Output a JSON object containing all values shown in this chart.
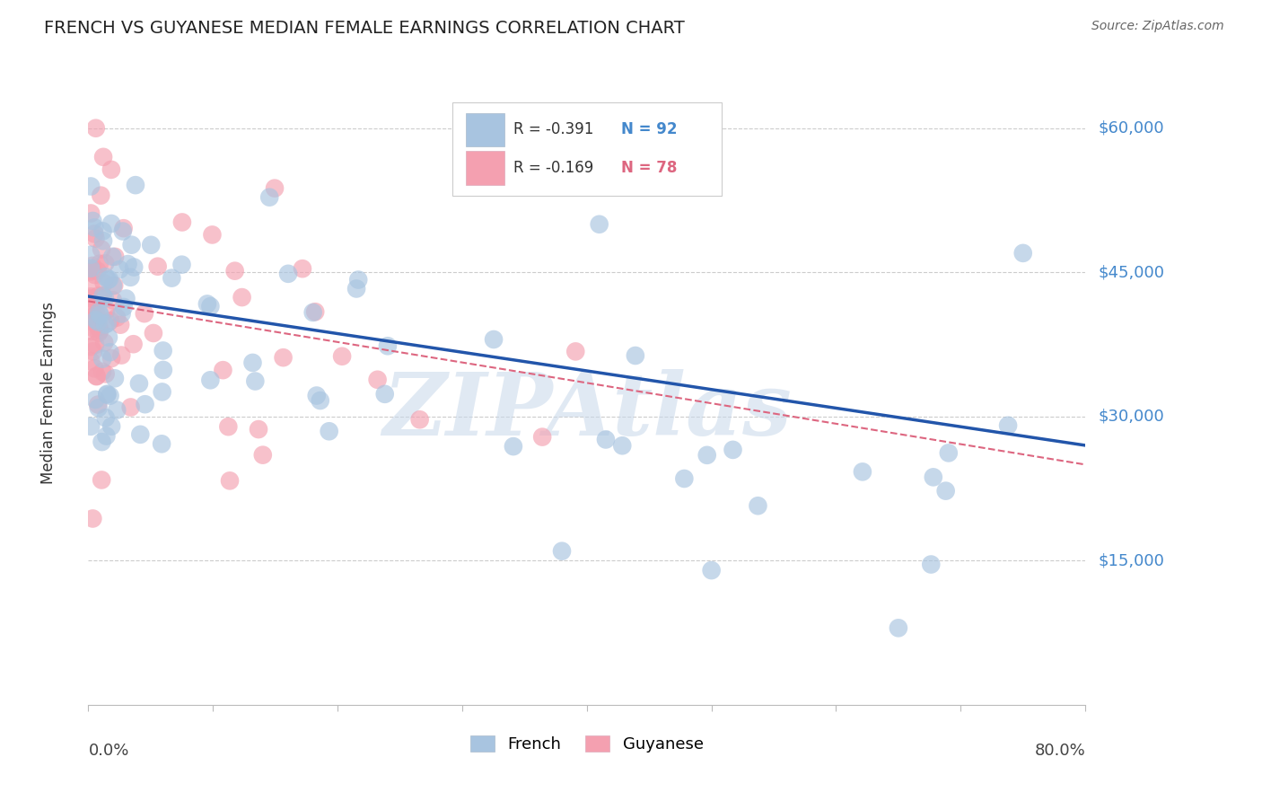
{
  "title": "FRENCH VS GUYANESE MEDIAN FEMALE EARNINGS CORRELATION CHART",
  "source": "Source: ZipAtlas.com",
  "ylabel": "Median Female Earnings",
  "ytick_labels": [
    "$60,000",
    "$45,000",
    "$30,000",
    "$15,000"
  ],
  "ytick_values": [
    60000,
    45000,
    30000,
    15000
  ],
  "ymax": 65000,
  "ymin": 0,
  "xmax": 0.8,
  "xmin": 0.0,
  "legend_blue_r": "R = -0.391",
  "legend_blue_n": "N = 92",
  "legend_pink_r": "R = -0.169",
  "legend_pink_n": "N = 78",
  "blue_color": "#a8c4e0",
  "pink_color": "#f4a0b0",
  "blue_line_color": "#2255aa",
  "pink_line_color": "#dd6680",
  "title_color": "#222222",
  "source_color": "#666666",
  "axis_value_color": "#4488cc",
  "watermark_text": "ZIPAtlas",
  "watermark_color": "#c8d8ea",
  "blue_trend_x": [
    0.0,
    0.8
  ],
  "blue_trend_y": [
    42500,
    27000
  ],
  "pink_trend_x": [
    0.0,
    0.8
  ],
  "pink_trend_y": [
    42000,
    25000
  ]
}
